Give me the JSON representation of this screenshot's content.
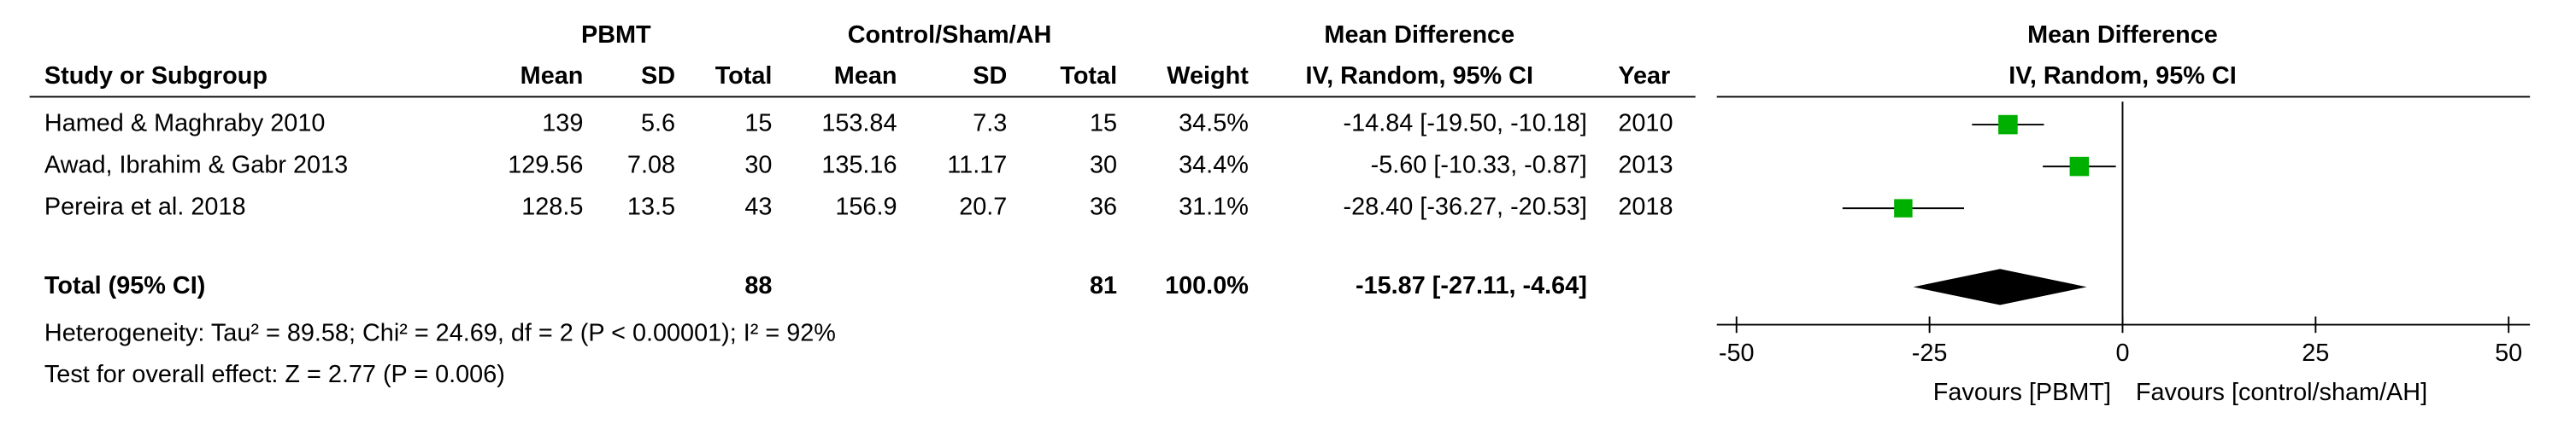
{
  "chart_data": {
    "type": "forest",
    "group_headers": [
      "PBMT",
      "Control/Sham/AH",
      "Mean Difference"
    ],
    "columns": [
      "Study or Subgroup",
      "Mean",
      "SD",
      "Total",
      "Mean",
      "SD",
      "Total",
      "Weight",
      "IV, Random, 95% CI",
      "Year"
    ],
    "plot_title": "Mean Difference",
    "plot_subtitle": "IV, Random, 95% CI",
    "studies": [
      {
        "name": "Hamed & Maghraby 2010",
        "exp_mean": 139,
        "exp_sd": 5.6,
        "exp_total": 15,
        "ctl_mean": 153.84,
        "ctl_sd": 7.3,
        "ctl_total": 15,
        "weight": 34.5,
        "weight_label": "34.5%",
        "md": -14.84,
        "ci_low": -19.5,
        "ci_high": -10.18,
        "ci_label": "-14.84 [-19.50, -10.18]",
        "year": 2010
      },
      {
        "name": "Awad, Ibrahim & Gabr 2013",
        "exp_mean": 129.56,
        "exp_sd": 7.08,
        "exp_total": 30,
        "ctl_mean": 135.16,
        "ctl_sd": 11.17,
        "ctl_total": 30,
        "weight": 34.4,
        "weight_label": "34.4%",
        "md": -5.6,
        "ci_low": -10.33,
        "ci_high": -0.87,
        "ci_label": "-5.60 [-10.33, -0.87]",
        "year": 2013
      },
      {
        "name": "Pereira et al. 2018",
        "exp_mean": 128.5,
        "exp_sd": 13.5,
        "exp_total": 43,
        "ctl_mean": 156.9,
        "ctl_sd": 20.7,
        "ctl_total": 36,
        "weight": 31.1,
        "weight_label": "31.1%",
        "md": -28.4,
        "ci_low": -36.27,
        "ci_high": -20.53,
        "ci_label": "-28.40 [-36.27, -20.53]",
        "year": 2018
      }
    ],
    "total": {
      "name": "Total (95% CI)",
      "exp_total": 88,
      "ctl_total": 81,
      "weight": 100,
      "weight_label": "100.0%",
      "md": -15.87,
      "ci_low": -27.11,
      "ci_high": -4.64,
      "ci_label": "-15.87 [-27.11, -4.64]"
    },
    "heterogeneity": "Heterogeneity: Tau² = 89.58; Chi² = 24.69, df = 2 (P < 0.00001); I² = 92%",
    "overall_effect": "Test for overall effect: Z = 2.77 (P = 0.006)",
    "xlim": [
      -50,
      50
    ],
    "xticks": [
      -50,
      -25,
      0,
      25,
      50
    ],
    "favours_left": "Favours [PBMT]",
    "favours_right": "Favours [control/sham/AH]",
    "color": "#00b000"
  }
}
